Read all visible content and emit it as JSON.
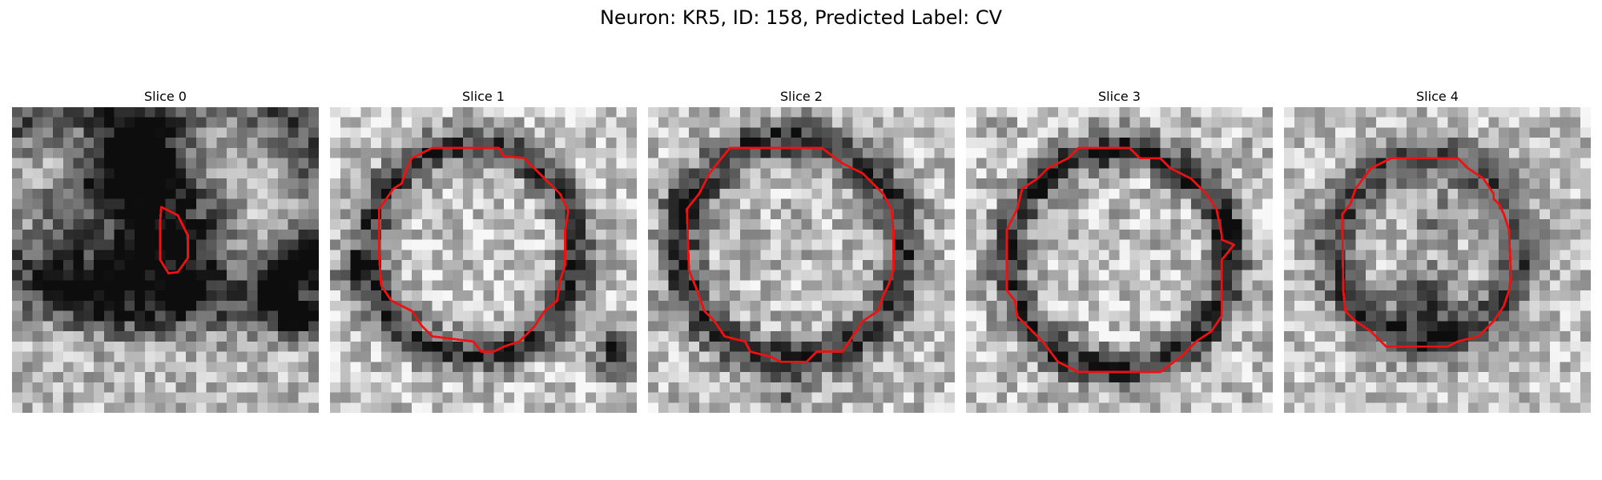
{
  "figure": {
    "title": "Neuron: KR5, ID: 158, Predicted Label: CV",
    "contour_color": "#ee1111",
    "slices": [
      {
        "title": "Slice 0"
      },
      {
        "title": "Slice 1"
      },
      {
        "title": "Slice 2"
      },
      {
        "title": "Slice 3"
      },
      {
        "title": "Slice 4"
      }
    ]
  }
}
